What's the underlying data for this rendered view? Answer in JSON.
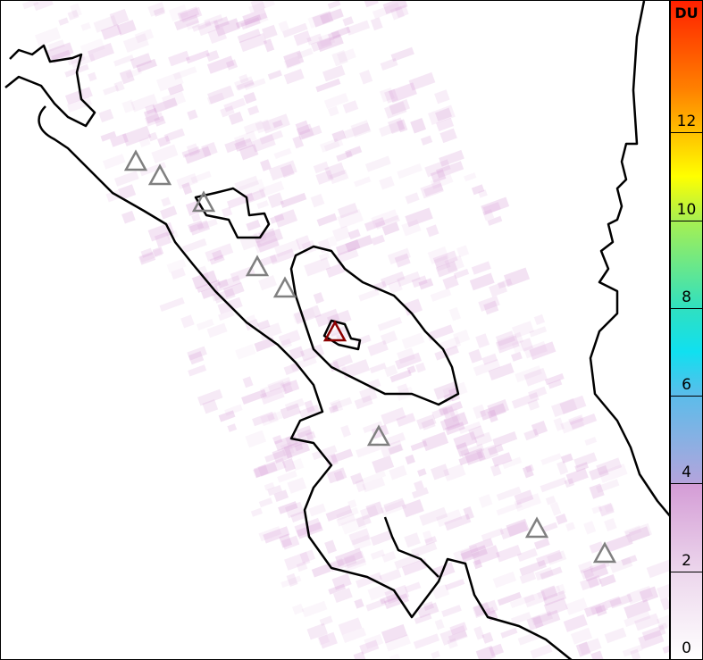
{
  "colorbar": {
    "unit": "DU",
    "min": 0,
    "max": 15,
    "ticks": [
      "0",
      "2",
      "4",
      "6",
      "8",
      "10",
      "12"
    ],
    "stops": [
      {
        "value": 0,
        "color": "#ffffff"
      },
      {
        "value": 2,
        "color": "#ecd6ec"
      },
      {
        "value": 4,
        "color": "#d49cd6"
      },
      {
        "value": 4.01,
        "color": "#b4a4dc"
      },
      {
        "value": 6,
        "color": "#5cbcea"
      },
      {
        "value": 7,
        "color": "#10e0f0"
      },
      {
        "value": 8,
        "color": "#30e0c0"
      },
      {
        "value": 10,
        "color": "#a8f050"
      },
      {
        "value": 11,
        "color": "#ffff00"
      },
      {
        "value": 12,
        "color": "#ffc000"
      },
      {
        "value": 13,
        "color": "#ff8000"
      },
      {
        "value": 15,
        "color": "#ff2000"
      }
    ]
  },
  "colors": {
    "coastline": "#000000",
    "marker": "#808080",
    "marker_highlight": "#8b0000",
    "retrieval": "#d8a0d8"
  },
  "markers": {
    "icon": "triangle-icon",
    "count": 9,
    "highlighted": 1
  }
}
